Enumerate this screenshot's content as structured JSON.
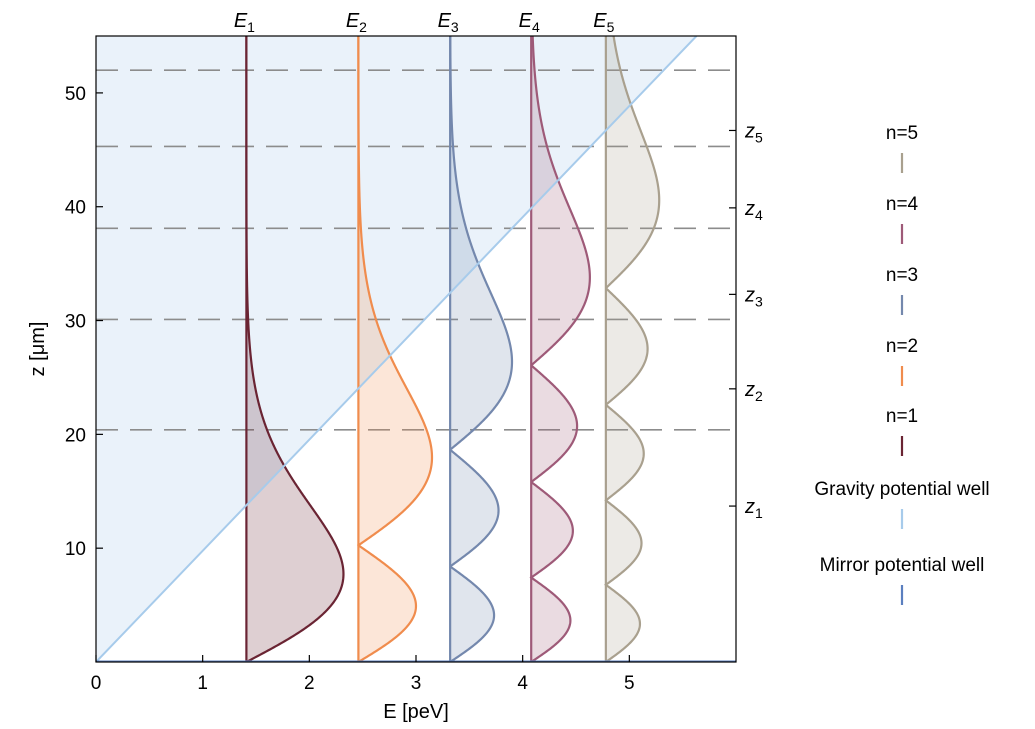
{
  "chart_data": {
    "type": "area",
    "xlabel": "E [peV]",
    "ylabel": "z [μm]",
    "xlim": [
      0,
      6
    ],
    "ylim": [
      0,
      55
    ],
    "x_ticks": [
      0,
      1,
      2,
      3,
      4,
      5
    ],
    "y_ticks": [
      10,
      20,
      30,
      40,
      50
    ],
    "grid": false,
    "legend_position": "right",
    "energy_levels": [
      {
        "label_main": "E",
        "label_sub": "1",
        "E": 1.41,
        "peak_amplitude": 0.91
      },
      {
        "label_main": "E",
        "label_sub": "2",
        "E": 2.46,
        "peak_amplitude": 0.69
      },
      {
        "label_main": "E",
        "label_sub": "3",
        "E": 3.32,
        "peak_amplitude": 0.58
      },
      {
        "label_main": "E",
        "label_sub": "4",
        "E": 4.08,
        "peak_amplitude": 0.55
      },
      {
        "label_main": "E",
        "label_sub": "5",
        "E": 4.78,
        "peak_amplitude": 0.5
      }
    ],
    "turning_points": [
      {
        "label_main": "z",
        "label_sub": "1",
        "z": 13.7,
        "dashed_line_z": 20.4
      },
      {
        "label_main": "z",
        "label_sub": "2",
        "z": 24.0,
        "dashed_line_z": 30.1
      },
      {
        "label_main": "z",
        "label_sub": "3",
        "z": 32.3,
        "dashed_line_z": 38.1
      },
      {
        "label_main": "z",
        "label_sub": "4",
        "z": 39.9,
        "dashed_line_z": 45.3
      },
      {
        "label_main": "z",
        "label_sub": "5",
        "z": 46.7,
        "dashed_line_z": 52.0
      }
    ],
    "gravity_potential": {
      "slope_z_per_peV": 9.77
    },
    "series": [
      {
        "name": "n=5",
        "color": "#a9a08e"
      },
      {
        "name": "n=4",
        "color": "#9e5a78"
      },
      {
        "name": "n=3",
        "color": "#7488ad"
      },
      {
        "name": "n=2",
        "color": "#f08c4d"
      },
      {
        "name": "n=1",
        "color": "#6a2433"
      },
      {
        "name": "Gravity potential well",
        "color": "#a7cbeb"
      },
      {
        "name": "Mirror potential well",
        "color": "#5b7fbf"
      }
    ],
    "colors": {
      "gravity_region_fill": "#eaf2fa",
      "dashed_line": "#8c8c8c"
    }
  }
}
